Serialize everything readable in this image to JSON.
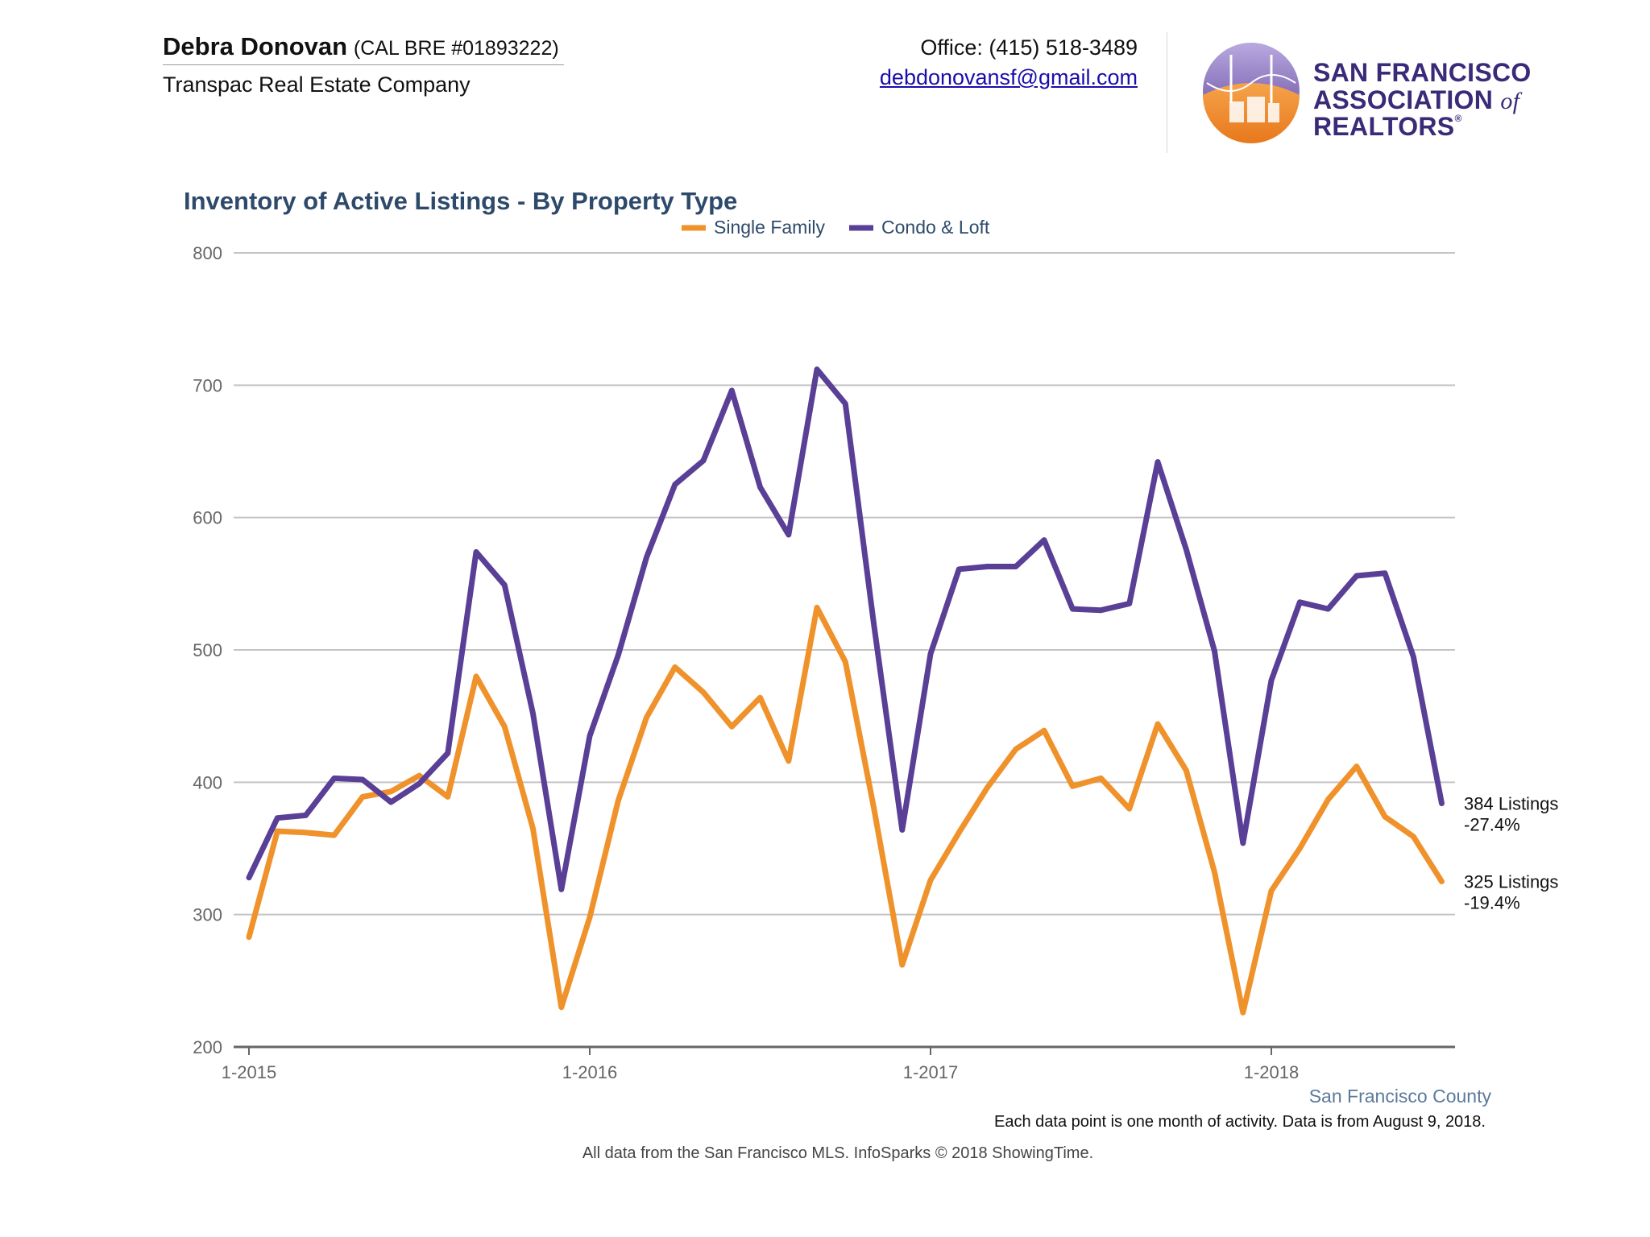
{
  "header": {
    "agent_name": "Debra Donovan",
    "agent_license": "(CAL BRE #01893222)",
    "company": "Transpac Real Estate Company",
    "office": "Office: (415) 518-3489",
    "email": "debdonovansf@gmail.com",
    "logo_line1": "SAN FRANCISCO",
    "logo_line2_a": "ASSOCIATION",
    "logo_line2_of": "of",
    "logo_line2_b": "REALTORS",
    "logo_reg": "®"
  },
  "chart_data": {
    "type": "line",
    "title": "Inventory of Active Listings - By Property Type",
    "ylim": [
      200,
      800
    ],
    "yticks": [
      200,
      300,
      400,
      500,
      600,
      700,
      800
    ],
    "xticks": [
      {
        "label": "1-2015",
        "index": 0
      },
      {
        "label": "1-2016",
        "index": 12
      },
      {
        "label": "1-2017",
        "index": 24
      },
      {
        "label": "1-2018",
        "index": 36
      }
    ],
    "x": [
      "2015-01",
      "2015-02",
      "2015-03",
      "2015-04",
      "2015-05",
      "2015-06",
      "2015-07",
      "2015-08",
      "2015-09",
      "2015-10",
      "2015-11",
      "2015-12",
      "2016-01",
      "2016-02",
      "2016-03",
      "2016-04",
      "2016-05",
      "2016-06",
      "2016-07",
      "2016-08",
      "2016-09",
      "2016-10",
      "2016-11",
      "2016-12",
      "2017-01",
      "2017-02",
      "2017-03",
      "2017-04",
      "2017-05",
      "2017-06",
      "2017-07",
      "2017-08",
      "2017-09",
      "2017-10",
      "2017-11",
      "2017-12",
      "2018-01",
      "2018-02",
      "2018-03",
      "2018-04",
      "2018-05",
      "2018-06",
      "2018-07"
    ],
    "series": [
      {
        "name": "Single Family",
        "color": "#f0922b",
        "values": [
          283,
          363,
          362,
          360,
          389,
          393,
          405,
          389,
          480,
          442,
          365,
          230,
          298,
          386,
          449,
          487,
          468,
          442,
          464,
          416,
          532,
          491,
          381,
          262,
          326,
          362,
          396,
          425,
          439,
          397,
          403,
          380,
          444,
          409,
          332,
          226,
          318,
          350,
          387,
          412,
          374,
          359,
          325
        ],
        "end_label_1": "325 Listings",
        "end_label_2": "-19.4%"
      },
      {
        "name": "Condo & Loft",
        "color": "#5a3f96",
        "values": [
          328,
          373,
          375,
          403,
          402,
          385,
          399,
          422,
          574,
          549,
          452,
          319,
          435,
          496,
          570,
          625,
          643,
          696,
          623,
          587,
          712,
          686,
          520,
          364,
          497,
          561,
          563,
          563,
          583,
          531,
          530,
          535,
          642,
          576,
          499,
          354,
          477,
          536,
          531,
          556,
          558,
          495,
          384
        ],
        "end_label_1": "384 Listings",
        "end_label_2": "-27.4%"
      }
    ],
    "region_label": "San Francisco County",
    "grid": true,
    "legend_position": "top-center"
  },
  "footer": {
    "note1": "Each data point is one month of activity. Data is from August 9, 2018.",
    "note2": "All data from the San Francisco MLS. InfoSparks © 2018 ShowingTime."
  }
}
